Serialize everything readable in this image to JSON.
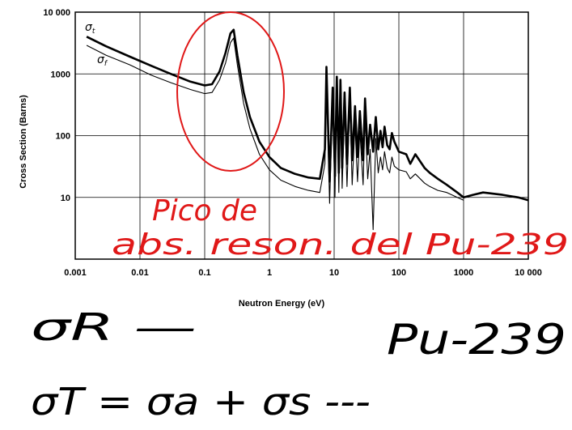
{
  "chart_data": {
    "type": "line",
    "xscale": "log",
    "yscale": "log",
    "xlim": [
      0.001,
      10000
    ],
    "ylim": [
      1,
      10000
    ],
    "grid": true,
    "xlabel": "Neutron Energy (eV)",
    "ylabel": "Cross Section (Barns)",
    "xticks": [
      "0.001",
      "0.01",
      "0.1",
      "1",
      "10",
      "100",
      "1000",
      "10 000"
    ],
    "yticks": [
      "10",
      "100",
      "1000",
      "10 000"
    ],
    "series": [
      {
        "name": "σt",
        "x": [
          0.0015,
          0.003,
          0.007,
          0.015,
          0.03,
          0.06,
          0.1,
          0.13,
          0.17,
          0.21,
          0.25,
          0.28,
          0.32,
          0.4,
          0.5,
          0.7,
          1,
          1.5,
          2.5,
          4,
          6,
          7.2,
          7.6,
          8.5,
          9.5,
          10.3,
          11,
          11.8,
          12.5,
          13.3,
          14.5,
          15.8,
          17.5,
          19,
          21,
          23,
          25,
          28,
          30,
          33,
          36,
          40,
          44,
          48,
          52,
          56,
          60,
          66,
          72,
          78,
          85,
          100,
          130,
          150,
          180,
          250,
          300,
          400,
          550,
          800,
          1000,
          1400,
          2000,
          4000,
          7000,
          10000
        ],
        "y": [
          4000,
          2800,
          1900,
          1350,
          1000,
          750,
          650,
          680,
          1100,
          2200,
          4500,
          5200,
          2000,
          500,
          200,
          80,
          45,
          30,
          24,
          21,
          20,
          60,
          1300,
          18,
          600,
          22,
          900,
          25,
          800,
          30,
          500,
          35,
          600,
          40,
          300,
          45,
          250,
          40,
          400,
          50,
          150,
          55,
          200,
          60,
          120,
          65,
          140,
          70,
          60,
          110,
          80,
          55,
          50,
          35,
          50,
          30,
          25,
          20,
          16,
          12,
          10,
          11,
          12,
          11,
          10,
          9
        ]
      },
      {
        "name": "σf",
        "x": [
          0.0015,
          0.003,
          0.007,
          0.015,
          0.03,
          0.06,
          0.1,
          0.13,
          0.17,
          0.21,
          0.25,
          0.28,
          0.32,
          0.4,
          0.5,
          0.7,
          1,
          1.5,
          2.5,
          4,
          6,
          7.2,
          7.6,
          8.5,
          9.5,
          10.3,
          11,
          11.8,
          12.5,
          13.3,
          14.5,
          15.8,
          17.5,
          19,
          21,
          23,
          25,
          28,
          30,
          33,
          36,
          40,
          44,
          48,
          52,
          56,
          60,
          66,
          72,
          78,
          85,
          100,
          130,
          150,
          180,
          250,
          300,
          400,
          550,
          800,
          1000
        ],
        "y": [
          2900,
          2000,
          1400,
          950,
          720,
          560,
          480,
          500,
          800,
          1500,
          3200,
          3800,
          1400,
          330,
          130,
          50,
          28,
          19,
          15,
          13,
          12,
          35,
          900,
          8,
          420,
          10,
          650,
          12,
          550,
          14,
          300,
          15,
          350,
          16,
          150,
          18,
          120,
          16,
          200,
          20,
          60,
          3,
          90,
          25,
          45,
          28,
          55,
          30,
          25,
          45,
          32,
          28,
          26,
          20,
          24,
          17,
          15,
          13,
          12,
          10,
          9
        ]
      }
    ],
    "annotations": [
      {
        "type": "ellipse-circle",
        "note": "red hand-drawn circle around resonance peak",
        "x_center": 0.25,
        "y_center": 200
      }
    ]
  },
  "handwriting": {
    "red_line1": "Pico de",
    "red_line2": "abs. reson. del Pu-239",
    "sigma_r": "σR —",
    "sigma_t_eq": "σT = σa + σs ---",
    "isotope": "Pu-239"
  }
}
